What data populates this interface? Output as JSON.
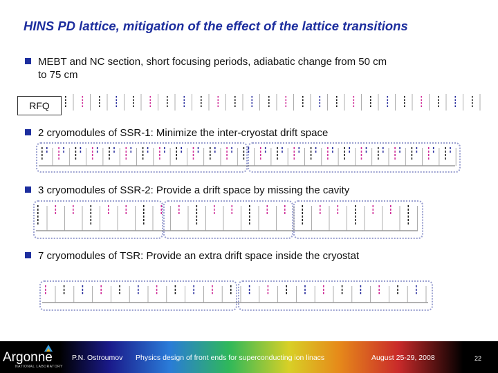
{
  "slide": {
    "title": "HINS PD lattice, mitigation of the effect of the lattice transitions",
    "bullets": [
      {
        "text": "MEBT and NC section, short focusing periods, adiabatic change from 50 cm",
        "cont": "to 75 cm"
      },
      {
        "text": "2 cryomodules of SSR-1: Minimize the inter-cryostat drift space"
      },
      {
        "text": "3 cryomodules of SSR-2: Provide a drift space by missing the cavity"
      },
      {
        "text": "7 cryomodules of TSR: Provide an extra drift space inside the cryostat"
      }
    ],
    "rfq_label": "RFQ",
    "element_colors": {
      "magnet": "#222222",
      "cavity": "#d0309a",
      "solenoid": "#2a2f9e"
    }
  },
  "footer": {
    "logo": "Argonne",
    "logo_sub": "NATIONAL LABORATORY",
    "author": "P.N. Ostroumov",
    "talk": "Physics design of front ends for superconducting ion linacs",
    "date": "August 25-29, 2008",
    "page": "22"
  }
}
